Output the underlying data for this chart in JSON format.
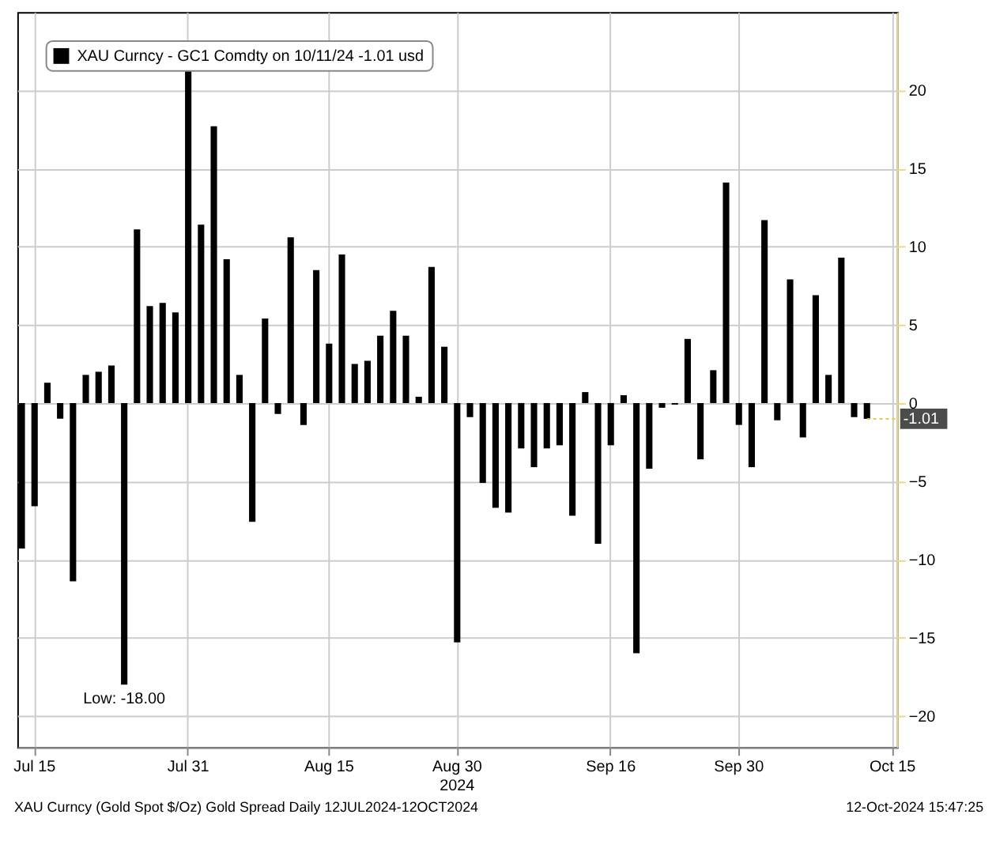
{
  "chart_data": {
    "type": "bar",
    "categories": [
      null,
      "Jul 15",
      null,
      null,
      null,
      null,
      null,
      null,
      null,
      null,
      null,
      null,
      null,
      "Jul 31",
      null,
      null,
      null,
      null,
      null,
      null,
      null,
      null,
      null,
      null,
      "Aug 15",
      null,
      null,
      null,
      null,
      null,
      null,
      null,
      null,
      null,
      "Aug 30\n2024",
      null,
      null,
      null,
      null,
      null,
      null,
      null,
      null,
      null,
      null,
      null,
      "Sep 16",
      null,
      null,
      null,
      null,
      null,
      null,
      null,
      null,
      null,
      "Sep 30",
      null,
      null,
      null,
      null,
      null,
      null,
      null,
      null,
      null,
      null,
      null,
      "Oct 15"
    ],
    "series": [
      {
        "name": "XAU Curncy - GC1 Comdty on 10/11/24 -1.01 usd",
        "color": "#000000",
        "values": [
          -9.3,
          -6.6,
          1.3,
          -1.0,
          -11.4,
          1.8,
          2.0,
          2.4,
          -18.0,
          11.1,
          6.2,
          6.4,
          5.8,
          21.5,
          11.4,
          17.7,
          9.2,
          1.8,
          -7.6,
          5.4,
          -0.7,
          10.6,
          -1.4,
          8.5,
          3.8,
          9.5,
          2.5,
          2.7,
          4.3,
          5.9,
          4.3,
          0.4,
          8.7,
          3.6,
          -15.3,
          -0.9,
          -5.1,
          -6.7,
          -7.0,
          -2.9,
          -4.1,
          -2.9,
          -2.7,
          -7.2,
          0.7,
          -9.0,
          -2.7,
          0.5,
          -16.0,
          -4.2,
          -0.3,
          -0.1,
          4.1,
          -3.6,
          2.1,
          14.1,
          -1.4,
          -4.1,
          11.7,
          -1.1,
          7.9,
          -2.2,
          6.9,
          1.8,
          9.3,
          -0.9,
          -1.01,
          null,
          null
        ]
      }
    ],
    "ylim": [
      -22,
      25
    ],
    "yticks": [
      -20,
      -15,
      -10,
      -5,
      0,
      5,
      10,
      15,
      20
    ],
    "grid": true,
    "legend": "top left",
    "annotations": [
      {
        "text": "Low: -18.00",
        "y": -18.0
      },
      {
        "text": "-1.01",
        "y": -1.01
      },
      "XAU Curncy (Gold Spot $/Oz) Gold Spread Daily 12JUL2024-12OCT2024",
      "12-Oct-2024 15:47:25"
    ]
  }
}
